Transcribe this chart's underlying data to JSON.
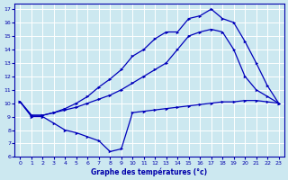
{
  "xlabel": "Graphe des températures (°c)",
  "bg_color": "#cce8f0",
  "grid_color": "#ffffff",
  "line_color": "#0000bb",
  "xlim": [
    -0.5,
    23.5
  ],
  "ylim": [
    6,
    17.4
  ],
  "yticks": [
    6,
    7,
    8,
    9,
    10,
    11,
    12,
    13,
    14,
    15,
    16,
    17
  ],
  "xticks": [
    0,
    1,
    2,
    3,
    4,
    5,
    6,
    7,
    8,
    9,
    10,
    11,
    12,
    13,
    14,
    15,
    16,
    17,
    18,
    19,
    20,
    21,
    22,
    23
  ],
  "line1_x": [
    0,
    1,
    2,
    3,
    4,
    5,
    6,
    7,
    8,
    9,
    10,
    11,
    12,
    13,
    14,
    15,
    16,
    17,
    18,
    19,
    20,
    21,
    22,
    23
  ],
  "line1_y": [
    10.1,
    9.0,
    9.0,
    8.5,
    8.0,
    7.8,
    7.5,
    7.2,
    6.4,
    6.6,
    9.3,
    9.4,
    9.5,
    9.6,
    9.7,
    9.8,
    9.9,
    10.0,
    10.1,
    10.1,
    10.2,
    10.2,
    10.1,
    10.0
  ],
  "line2_x": [
    0,
    1,
    2,
    3,
    4,
    5,
    6,
    7,
    8,
    9,
    10,
    11,
    12,
    13,
    14,
    15,
    16,
    17,
    18,
    19,
    20,
    21,
    22,
    23
  ],
  "line2_y": [
    10.1,
    9.1,
    9.1,
    9.3,
    9.5,
    9.7,
    10.0,
    10.3,
    10.6,
    11.0,
    11.5,
    12.0,
    12.5,
    13.0,
    14.0,
    15.0,
    15.3,
    15.5,
    15.3,
    14.0,
    12.0,
    11.0,
    10.5,
    10.0
  ],
  "line3_x": [
    0,
    1,
    2,
    3,
    4,
    5,
    6,
    7,
    8,
    9,
    10,
    11,
    12,
    13,
    14,
    15,
    16,
    17,
    18,
    19,
    20,
    21,
    22,
    23
  ],
  "line3_y": [
    10.1,
    9.1,
    9.1,
    9.3,
    9.6,
    10.0,
    10.5,
    11.2,
    11.8,
    12.5,
    13.5,
    14.0,
    14.8,
    15.3,
    15.3,
    16.3,
    16.5,
    17.0,
    16.3,
    16.0,
    14.6,
    13.0,
    11.3,
    10.0
  ]
}
